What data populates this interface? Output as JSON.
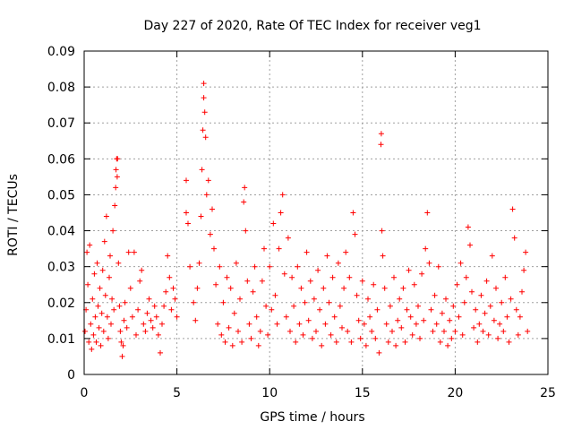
{
  "chart_data": {
    "type": "scatter",
    "title": "Day 227 of 2020, Rate Of TEC Index for receiver veg1",
    "xlabel": "GPS time / hours",
    "ylabel": "ROTI / TECUs",
    "xlim": [
      0,
      25
    ],
    "ylim": [
      0,
      0.09
    ],
    "x_ticks": [
      "0",
      "5",
      "10",
      "15",
      "20",
      "25"
    ],
    "y_ticks": [
      "0",
      "0.01",
      "0.02",
      "0.03",
      "0.04",
      "0.05",
      "0.06",
      "0.07",
      "0.08",
      "0.09"
    ],
    "grid": true,
    "marker": "+",
    "color": "#ff0000",
    "series": [
      {
        "name": "ROTI",
        "points": [
          [
            0.05,
            0.012
          ],
          [
            0.1,
            0.018
          ],
          [
            0.15,
            0.034
          ],
          [
            0.2,
            0.025
          ],
          [
            0.25,
            0.009
          ],
          [
            0.3,
            0.036
          ],
          [
            0.35,
            0.014
          ],
          [
            0.4,
            0.007
          ],
          [
            0.45,
            0.021
          ],
          [
            0.5,
            0.011
          ],
          [
            0.55,
            0.028
          ],
          [
            0.6,
            0.016
          ],
          [
            0.65,
            0.009
          ],
          [
            0.7,
            0.031
          ],
          [
            0.75,
            0.019
          ],
          [
            0.8,
            0.013
          ],
          [
            0.85,
            0.024
          ],
          [
            0.9,
            0.008
          ],
          [
            0.95,
            0.017
          ],
          [
            1.0,
            0.029
          ],
          [
            1.05,
            0.012
          ],
          [
            1.1,
            0.037
          ],
          [
            1.15,
            0.022
          ],
          [
            1.2,
            0.044
          ],
          [
            1.25,
            0.016
          ],
          [
            1.3,
            0.01
          ],
          [
            1.35,
            0.027
          ],
          [
            1.4,
            0.033
          ],
          [
            1.45,
            0.014
          ],
          [
            1.5,
            0.021
          ],
          [
            1.55,
            0.04
          ],
          [
            1.6,
            0.018
          ],
          [
            1.65,
            0.047
          ],
          [
            1.7,
            0.052
          ],
          [
            1.72,
            0.057
          ],
          [
            1.75,
            0.06
          ],
          [
            1.8,
            0.06
          ],
          [
            1.78,
            0.055
          ],
          [
            1.85,
            0.031
          ],
          [
            1.9,
            0.019
          ],
          [
            1.95,
            0.012
          ],
          [
            2.0,
            0.009
          ],
          [
            2.05,
            0.005
          ],
          [
            2.1,
            0.008
          ],
          [
            2.15,
            0.015
          ],
          [
            2.2,
            0.02
          ],
          [
            2.3,
            0.013
          ],
          [
            2.4,
            0.034
          ],
          [
            2.5,
            0.024
          ],
          [
            2.6,
            0.016
          ],
          [
            2.7,
            0.034
          ],
          [
            2.8,
            0.011
          ],
          [
            2.9,
            0.018
          ],
          [
            3.0,
            0.026
          ],
          [
            3.1,
            0.029
          ],
          [
            3.2,
            0.014
          ],
          [
            3.3,
            0.012
          ],
          [
            3.4,
            0.017
          ],
          [
            3.5,
            0.021
          ],
          [
            3.6,
            0.015
          ],
          [
            3.7,
            0.013
          ],
          [
            3.8,
            0.019
          ],
          [
            3.9,
            0.016
          ],
          [
            4.0,
            0.011
          ],
          [
            4.1,
            0.006
          ],
          [
            4.2,
            0.014
          ],
          [
            4.3,
            0.019
          ],
          [
            4.4,
            0.023
          ],
          [
            4.5,
            0.033
          ],
          [
            4.6,
            0.027
          ],
          [
            4.7,
            0.018
          ],
          [
            4.8,
            0.024
          ],
          [
            4.9,
            0.021
          ],
          [
            5.0,
            0.016
          ],
          [
            5.5,
            0.054
          ],
          [
            5.5,
            0.045
          ],
          [
            5.6,
            0.042
          ],
          [
            5.7,
            0.03
          ],
          [
            5.9,
            0.02
          ],
          [
            6.0,
            0.015
          ],
          [
            6.1,
            0.024
          ],
          [
            6.2,
            0.031
          ],
          [
            6.3,
            0.044
          ],
          [
            6.35,
            0.057
          ],
          [
            6.4,
            0.068
          ],
          [
            6.45,
            0.077
          ],
          [
            6.45,
            0.081
          ],
          [
            6.5,
            0.073
          ],
          [
            6.55,
            0.066
          ],
          [
            6.6,
            0.05
          ],
          [
            6.7,
            0.054
          ],
          [
            6.8,
            0.039
          ],
          [
            6.9,
            0.046
          ],
          [
            7.0,
            0.035
          ],
          [
            7.1,
            0.025
          ],
          [
            7.2,
            0.014
          ],
          [
            7.3,
            0.03
          ],
          [
            7.4,
            0.011
          ],
          [
            7.5,
            0.02
          ],
          [
            7.6,
            0.009
          ],
          [
            7.7,
            0.027
          ],
          [
            7.8,
            0.013
          ],
          [
            7.9,
            0.024
          ],
          [
            8.0,
            0.008
          ],
          [
            8.1,
            0.017
          ],
          [
            8.2,
            0.031
          ],
          [
            8.3,
            0.012
          ],
          [
            8.4,
            0.021
          ],
          [
            8.5,
            0.009
          ],
          [
            8.6,
            0.048
          ],
          [
            8.65,
            0.052
          ],
          [
            8.7,
            0.04
          ],
          [
            8.8,
            0.026
          ],
          [
            8.9,
            0.014
          ],
          [
            9.0,
            0.01
          ],
          [
            9.1,
            0.023
          ],
          [
            9.2,
            0.03
          ],
          [
            9.3,
            0.016
          ],
          [
            9.4,
            0.008
          ],
          [
            9.5,
            0.012
          ],
          [
            9.6,
            0.026
          ],
          [
            9.7,
            0.035
          ],
          [
            9.8,
            0.019
          ],
          [
            9.9,
            0.011
          ],
          [
            10.0,
            0.03
          ],
          [
            10.1,
            0.018
          ],
          [
            10.2,
            0.042
          ],
          [
            10.3,
            0.022
          ],
          [
            10.4,
            0.014
          ],
          [
            10.5,
            0.035
          ],
          [
            10.6,
            0.045
          ],
          [
            10.7,
            0.05
          ],
          [
            10.8,
            0.028
          ],
          [
            10.9,
            0.016
          ],
          [
            11.0,
            0.038
          ],
          [
            11.1,
            0.012
          ],
          [
            11.2,
            0.027
          ],
          [
            11.3,
            0.019
          ],
          [
            11.4,
            0.009
          ],
          [
            11.5,
            0.03
          ],
          [
            11.6,
            0.014
          ],
          [
            11.7,
            0.024
          ],
          [
            11.8,
            0.011
          ],
          [
            11.9,
            0.02
          ],
          [
            12.0,
            0.034
          ],
          [
            12.1,
            0.015
          ],
          [
            12.2,
            0.026
          ],
          [
            12.3,
            0.01
          ],
          [
            12.4,
            0.021
          ],
          [
            12.5,
            0.012
          ],
          [
            12.6,
            0.029
          ],
          [
            12.7,
            0.018
          ],
          [
            12.8,
            0.008
          ],
          [
            12.9,
            0.024
          ],
          [
            13.0,
            0.014
          ],
          [
            13.1,
            0.033
          ],
          [
            13.2,
            0.02
          ],
          [
            13.3,
            0.011
          ],
          [
            13.4,
            0.027
          ],
          [
            13.5,
            0.016
          ],
          [
            13.6,
            0.009
          ],
          [
            13.7,
            0.031
          ],
          [
            13.8,
            0.019
          ],
          [
            13.9,
            0.013
          ],
          [
            14.0,
            0.024
          ],
          [
            14.1,
            0.034
          ],
          [
            14.2,
            0.012
          ],
          [
            14.3,
            0.027
          ],
          [
            14.4,
            0.009
          ],
          [
            14.5,
            0.045
          ],
          [
            14.6,
            0.039
          ],
          [
            14.7,
            0.022
          ],
          [
            14.8,
            0.015
          ],
          [
            14.9,
            0.01
          ],
          [
            15.0,
            0.026
          ],
          [
            15.1,
            0.014
          ],
          [
            15.2,
            0.008
          ],
          [
            15.3,
            0.021
          ],
          [
            15.4,
            0.016
          ],
          [
            15.5,
            0.012
          ],
          [
            15.6,
            0.025
          ],
          [
            15.7,
            0.01
          ],
          [
            15.8,
            0.018
          ],
          [
            15.9,
            0.006
          ],
          [
            16.0,
            0.064
          ],
          [
            16.02,
            0.067
          ],
          [
            16.05,
            0.04
          ],
          [
            16.1,
            0.033
          ],
          [
            16.2,
            0.024
          ],
          [
            16.3,
            0.014
          ],
          [
            16.4,
            0.009
          ],
          [
            16.5,
            0.019
          ],
          [
            16.6,
            0.012
          ],
          [
            16.7,
            0.027
          ],
          [
            16.8,
            0.008
          ],
          [
            16.9,
            0.015
          ],
          [
            17.0,
            0.021
          ],
          [
            17.1,
            0.013
          ],
          [
            17.2,
            0.024
          ],
          [
            17.3,
            0.009
          ],
          [
            17.4,
            0.018
          ],
          [
            17.5,
            0.029
          ],
          [
            17.6,
            0.016
          ],
          [
            17.7,
            0.011
          ],
          [
            17.8,
            0.025
          ],
          [
            17.9,
            0.014
          ],
          [
            18.0,
            0.019
          ],
          [
            18.1,
            0.01
          ],
          [
            18.2,
            0.028
          ],
          [
            18.3,
            0.015
          ],
          [
            18.4,
            0.035
          ],
          [
            18.5,
            0.045
          ],
          [
            18.6,
            0.031
          ],
          [
            18.7,
            0.018
          ],
          [
            18.8,
            0.012
          ],
          [
            18.9,
            0.022
          ],
          [
            19.0,
            0.014
          ],
          [
            19.1,
            0.03
          ],
          [
            19.2,
            0.009
          ],
          [
            19.3,
            0.017
          ],
          [
            19.4,
            0.012
          ],
          [
            19.5,
            0.021
          ],
          [
            19.6,
            0.008
          ],
          [
            19.7,
            0.015
          ],
          [
            19.8,
            0.01
          ],
          [
            19.9,
            0.019
          ],
          [
            20.0,
            0.012
          ],
          [
            20.1,
            0.025
          ],
          [
            20.2,
            0.016
          ],
          [
            20.3,
            0.031
          ],
          [
            20.4,
            0.011
          ],
          [
            20.5,
            0.02
          ],
          [
            20.6,
            0.027
          ],
          [
            20.7,
            0.041
          ],
          [
            20.8,
            0.036
          ],
          [
            20.9,
            0.023
          ],
          [
            21.0,
            0.013
          ],
          [
            21.1,
            0.018
          ],
          [
            21.2,
            0.009
          ],
          [
            21.3,
            0.014
          ],
          [
            21.4,
            0.022
          ],
          [
            21.5,
            0.012
          ],
          [
            21.6,
            0.017
          ],
          [
            21.7,
            0.026
          ],
          [
            21.8,
            0.011
          ],
          [
            21.9,
            0.019
          ],
          [
            22.0,
            0.033
          ],
          [
            22.1,
            0.015
          ],
          [
            22.2,
            0.024
          ],
          [
            22.3,
            0.01
          ],
          [
            22.4,
            0.014
          ],
          [
            22.5,
            0.02
          ],
          [
            22.6,
            0.012
          ],
          [
            22.7,
            0.027
          ],
          [
            22.8,
            0.016
          ],
          [
            22.9,
            0.009
          ],
          [
            23.0,
            0.021
          ],
          [
            23.1,
            0.046
          ],
          [
            23.2,
            0.038
          ],
          [
            23.3,
            0.018
          ],
          [
            23.4,
            0.011
          ],
          [
            23.5,
            0.016
          ],
          [
            23.6,
            0.023
          ],
          [
            23.7,
            0.029
          ],
          [
            23.8,
            0.034
          ],
          [
            23.9,
            0.012
          ]
        ]
      }
    ]
  }
}
